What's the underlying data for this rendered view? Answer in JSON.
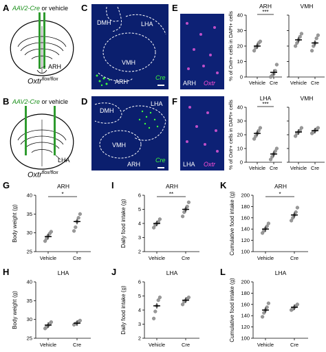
{
  "panels": {
    "A": {
      "label": "A",
      "injection": "AAV2-Cre",
      "injection_suffix": " or vehicle",
      "region": "ARH",
      "genotype": "Oxtr",
      "genotype_sup": "flox/flox"
    },
    "B": {
      "label": "B",
      "injection": "AAV2-Cre",
      "injection_suffix": " or vehicle",
      "region": "LHA",
      "genotype": "Oxtr",
      "genotype_sup": "flox/flox"
    },
    "C": {
      "label": "C",
      "regions": [
        "DMH",
        "LHA",
        "VMH",
        "ARH"
      ],
      "stain": "Cre"
    },
    "D": {
      "label": "D",
      "regions": [
        "DMH",
        "LHA",
        "VMH",
        "ARH"
      ],
      "stain": "Cre"
    },
    "E": {
      "label": "E",
      "region": "ARH",
      "stain": "Oxtr"
    },
    "F": {
      "label": "F",
      "region": "LHA",
      "stain": "Oxtr"
    }
  },
  "right_top": {
    "label": "E",
    "ylabel_prefix": "% of ",
    "ylabel_italic": "Oxtr",
    "ylabel_suffix": "+ cells in DAPI+ cells",
    "left_title": "ARH",
    "right_title": "VMH",
    "sig": "***",
    "yticks": [
      "0",
      "10",
      "20",
      "30",
      "40"
    ],
    "xticks": [
      "Vehicle",
      "Cre",
      "Vehicle",
      "Cre"
    ]
  },
  "right_bottom": {
    "label": "F",
    "ylabel_prefix": "% of ",
    "ylabel_italic": "Oxtr",
    "ylabel_suffix": "+ cells in DAPI+ cells",
    "left_title": "LHA",
    "right_title": "VMH",
    "sig": "***",
    "yticks": [
      "0",
      "10",
      "20",
      "30",
      "40"
    ],
    "xticks": [
      "Vehicle",
      "Cre",
      "Vehicle",
      "Cre"
    ]
  },
  "chart_data": [
    {
      "type": "scatter",
      "panel": "E-left",
      "title": "ARH",
      "ylabel": "% of Oxtr+ cells in DAPI+ cells",
      "categories": [
        "Vehicle",
        "Cre"
      ],
      "ylim": [
        0,
        40
      ],
      "means": [
        20,
        3
      ],
      "points": [
        [
          17,
          19,
          20,
          22,
          23
        ],
        [
          0,
          1,
          2,
          4,
          8
        ]
      ]
    },
    {
      "type": "scatter",
      "panel": "E-right",
      "title": "VMH",
      "categories": [
        "Vehicle",
        "Cre"
      ],
      "ylim": [
        0,
        40
      ],
      "means": [
        24,
        22
      ],
      "points": [
        [
          20,
          22,
          24,
          26,
          28
        ],
        [
          17,
          20,
          22,
          25,
          27
        ]
      ]
    },
    {
      "type": "scatter",
      "panel": "F-left",
      "title": "LHA",
      "ylabel": "% of Oxtr+ cells in DAPI+ cells",
      "categories": [
        "Vehicle",
        "Cre"
      ],
      "ylim": [
        0,
        40
      ],
      "means": [
        21,
        6
      ],
      "points": [
        [
          17,
          19,
          21,
          23,
          25
        ],
        [
          2,
          4,
          6,
          8,
          10
        ]
      ]
    },
    {
      "type": "scatter",
      "panel": "F-right",
      "title": "VMH",
      "categories": [
        "Vehicle",
        "Cre"
      ],
      "ylim": [
        0,
        40
      ],
      "means": [
        22,
        23
      ],
      "points": [
        [
          19,
          21,
          22,
          23,
          25
        ],
        [
          21,
          22,
          23,
          24,
          25
        ]
      ]
    },
    {
      "type": "scatter",
      "panel": "G",
      "label": "G",
      "title": "ARH",
      "ylabel": "Body weight (g)",
      "categories": [
        "Vehicle",
        "Cre"
      ],
      "ylim": [
        25,
        40
      ],
      "yticks": [
        25,
        30,
        35,
        40
      ],
      "means": [
        29,
        33
      ],
      "points": [
        [
          27.8,
          28.5,
          29.2,
          29.8,
          30.3
        ],
        [
          30.5,
          31.5,
          33,
          34,
          35
        ]
      ],
      "sig": "*"
    },
    {
      "type": "scatter",
      "panel": "I",
      "label": "I",
      "title": "ARH",
      "ylabel": "Daily food intake (g)",
      "categories": [
        "Vehicle",
        "Cre"
      ],
      "ylim": [
        2,
        6
      ],
      "yticks": [
        2,
        3,
        4,
        5,
        6
      ],
      "means": [
        4,
        5
      ],
      "points": [
        [
          3.7,
          3.9,
          4.0,
          4.1,
          4.3
        ],
        [
          4.5,
          4.8,
          5.0,
          5.2,
          5.5
        ]
      ],
      "sig": "**"
    },
    {
      "type": "scatter",
      "panel": "K",
      "label": "K",
      "title": "ARH",
      "ylabel": "Cumulative food intake (g)",
      "categories": [
        "Vehicle",
        "Cre"
      ],
      "ylim": [
        100,
        200
      ],
      "yticks": [
        100,
        120,
        140,
        160,
        180,
        200
      ],
      "means": [
        140,
        165
      ],
      "points": [
        [
          133,
          137,
          141,
          145,
          150
        ],
        [
          155,
          160,
          165,
          170,
          178
        ]
      ],
      "sig": "*"
    },
    {
      "type": "scatter",
      "panel": "H",
      "label": "H",
      "title": "LHA",
      "ylabel": "Body weight (g)",
      "categories": [
        "Vehicle",
        "Cre"
      ],
      "ylim": [
        25,
        40
      ],
      "yticks": [
        25,
        30,
        35,
        40
      ],
      "means": [
        28.5,
        29
      ],
      "points": [
        [
          27.6,
          28.0,
          28.4,
          28.8,
          29.3
        ],
        [
          28.6,
          28.9,
          29.1,
          29.4,
          29.7
        ]
      ]
    },
    {
      "type": "scatter",
      "panel": "J",
      "label": "J",
      "title": "LHA",
      "ylabel": "Daily food intake (g)",
      "categories": [
        "Vehicle",
        "Cre"
      ],
      "ylim": [
        2,
        6
      ],
      "yticks": [
        2,
        3,
        4,
        5,
        6
      ],
      "means": [
        4.3,
        4.7
      ],
      "points": [
        [
          3.4,
          3.9,
          4.3,
          4.7,
          4.9
        ],
        [
          4.4,
          4.6,
          4.7,
          4.8,
          4.9
        ]
      ]
    },
    {
      "type": "scatter",
      "panel": "L",
      "label": "L",
      "title": "LHA",
      "ylabel": "Cumulative food intake (g)",
      "categories": [
        "Vehicle",
        "Cre"
      ],
      "ylim": [
        100,
        200
      ],
      "yticks": [
        100,
        120,
        140,
        160,
        180,
        200
      ],
      "means": [
        150,
        155
      ],
      "points": [
        [
          138,
          145,
          150,
          155,
          162
        ],
        [
          150,
          152,
          155,
          157,
          160
        ]
      ]
    }
  ]
}
